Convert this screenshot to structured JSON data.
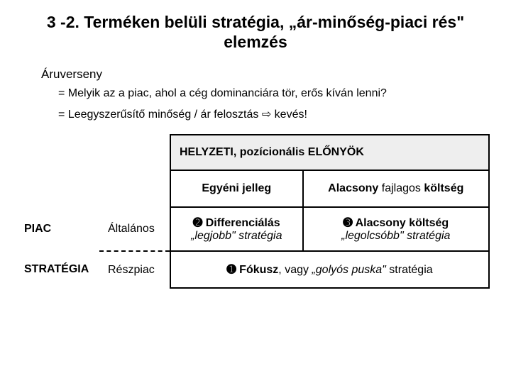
{
  "title": "3 -2. Terméken belüli stratégia, „ár-minőség-piaci rés\" elemzés",
  "subtitle": "Áruverseny",
  "bullet1": "= Melyik az a piac, ahol a cég dominanciára tör, erős kíván lenni?",
  "bullet2_pre": "= Leegyszerűsítő minőség / ár felosztás ",
  "bullet2_arrow": "⇨",
  "bullet2_post": " kevés!",
  "matrix": {
    "top_header": "HELYZETI, pozícionális ELŐNYÖK",
    "col1": "Egyéni jelleg",
    "col2_a": "Alacsony ",
    "col2_b": "fajlagos ",
    "col2_c": "költség",
    "side_piac": "PIAC",
    "side_strategia": "STRATÉGIA",
    "row_alt": "Általános",
    "row_resz": "Részpiac",
    "diff_num": "➋",
    "diff_label": " Differenciálás",
    "diff_sub": "„legjobb\" stratégia",
    "alac_num": "➌",
    "alac_label": " Alacsony költség",
    "alac_sub": "„legolcsóbb\" stratégia",
    "focus_num": "➊",
    "focus_label_a": " Fókusz",
    "focus_label_b": ", vagy ",
    "focus_label_c": "„golyós puska\"",
    "focus_label_d": " stratégia"
  },
  "colors": {
    "bg": "#ffffff",
    "text": "#000000",
    "header_bg": "#eeeeee",
    "border": "#000000"
  },
  "fontsizes": {
    "title": 23,
    "body": 16,
    "subtitle": 17
  }
}
